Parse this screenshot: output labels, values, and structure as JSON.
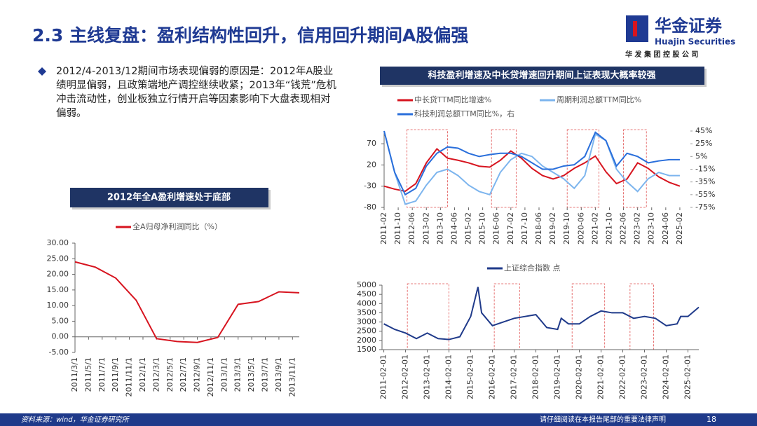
{
  "header": {
    "title": "2.3 主线复盘：盈利结构性回升，信用回升期间A股偏强",
    "logo_text": "华金证券",
    "logo_en": "Huajin Securities",
    "logo_sub": "华 发 集 团 控 股 公 司"
  },
  "bullet": "2012/4-2013/12期间市场表现偏弱的原因是：2012年A股业绩明显偏弱，且政策端地产调控继续收紧；2013年“钱荒”危机冲击流动性，创业板独立行情开启等因素影响下大盘表现相对偏弱。",
  "chart_data": [
    {
      "type": "line",
      "title": "2012年全A盈利增速处于底部",
      "x": [
        "2011/3/1",
        "2011/6/1",
        "2011/9/1",
        "2011/12/1",
        "2012/3/1",
        "2012/6/1",
        "2012/9/1",
        "2012/12/1",
        "2013/3/1",
        "2013/6/1",
        "2013/9/1",
        "2013/12/1"
      ],
      "series": [
        {
          "name": "全A归母净利润同比（%）",
          "color": "#d7141f",
          "values": [
            24,
            22.3,
            18.8,
            11.7,
            -0.6,
            -1.5,
            -1.8,
            -0.2,
            10.4,
            11.3,
            14.4,
            14.1
          ]
        }
      ],
      "xlim": [
        "2011/3/1",
        "2013/12/1"
      ],
      "xticks": [
        "2011/3/1",
        "2011/5/1",
        "2011/7/1",
        "2011/9/1",
        "2011/11/1",
        "2012/1/1",
        "2012/3/1",
        "2012/5/1",
        "2012/7/1",
        "2012/9/1",
        "2012/11/1",
        "2013/1/1",
        "2013/3/1",
        "2013/5/1",
        "2013/7/1",
        "2013/9/1",
        "2013/11/1"
      ],
      "ylim": [
        -5,
        30
      ],
      "yticks": [
        {
          "value": 30,
          "label": "30.00"
        },
        {
          "value": 25,
          "label": "25.00"
        },
        {
          "value": 20,
          "label": "20.00"
        },
        {
          "value": 15,
          "label": "15.00"
        },
        {
          "value": 10,
          "label": "10.00"
        },
        {
          "value": 5,
          "label": "5.00"
        },
        {
          "value": 0,
          "label": "0.00"
        },
        {
          "value": -5,
          "label": "-5.00"
        }
      ]
    },
    {
      "type": "line",
      "title": "科技盈利增速及中长贷增速回升期间上证表现大概率较强",
      "x": [
        "2011-02",
        "2011-08",
        "2012-02",
        "2012-08",
        "2013-02",
        "2013-08",
        "2014-02",
        "2014-08",
        "2015-02",
        "2015-08",
        "2016-02",
        "2016-08",
        "2017-02",
        "2017-08",
        "2018-02",
        "2018-08",
        "2019-02",
        "2019-08",
        "2020-02",
        "2020-08",
        "2021-02",
        "2021-08",
        "2022-02",
        "2022-08",
        "2023-02",
        "2023-08",
        "2024-02",
        "2024-08",
        "2025-02"
      ],
      "series": [
        {
          "name": "中长贷TTM同比增速%",
          "color": "#d7141f",
          "values": [
            -30,
            -37,
            -42,
            -24,
            25,
            58,
            36,
            31,
            25,
            17,
            15,
            31,
            53,
            36,
            12,
            -5,
            -13,
            -5,
            12,
            25,
            41,
            4,
            -24,
            -13,
            25,
            12,
            -8,
            -21,
            -30
          ]
        },
        {
          "name": "周期利润总额TTM同比%",
          "color": "#7db5ee",
          "axis": "y2",
          "values": [
            45,
            -20,
            -70,
            -65,
            -40,
            -20,
            -15,
            -25,
            -40,
            -50,
            -55,
            -20,
            0,
            10,
            5,
            -10,
            -20,
            -30,
            -45,
            -25,
            40,
            30,
            -15,
            -35,
            -50,
            -30,
            -20,
            -25,
            -25
          ]
        },
        {
          "name": "科技利润总额TTM同比%，右",
          "color": "#2a6fdb",
          "axis": "y2",
          "values": [
            45,
            -20,
            -55,
            -45,
            -10,
            10,
            20,
            18,
            10,
            5,
            8,
            10,
            10,
            5,
            -5,
            -15,
            -15,
            -10,
            -8,
            5,
            43,
            30,
            -10,
            10,
            5,
            -5,
            -2,
            0,
            0
          ]
        }
      ],
      "periods": [
        [
          "2012-03",
          "2014-02"
        ],
        [
          "2016-03",
          "2017-05"
        ],
        [
          "2019-10",
          "2021-04"
        ],
        [
          "2022-06",
          "2023-07"
        ]
      ],
      "xlim": [
        "2011-02",
        "2025-08"
      ],
      "xticks": [
        "2011-02",
        "2011-10",
        "2012-06",
        "2013-02",
        "2013-10",
        "2014-06",
        "2015-02",
        "2015-10",
        "2016-06",
        "2017-02",
        "2017-10",
        "2018-06",
        "2019-02",
        "2019-10",
        "2020-06",
        "2021-02",
        "2021-10",
        "2022-06",
        "2023-02",
        "2023-10",
        "2024-06",
        "2025-02"
      ],
      "ylim": [
        -80,
        100
      ],
      "yticks": [
        70,
        20,
        -30,
        -80
      ],
      "y2lim": [
        -75,
        45
      ],
      "y2ticks": [
        {
          "value": 45,
          "label": "45%"
        },
        {
          "value": 25,
          "label": "25%"
        },
        {
          "value": 5,
          "label": "5%"
        },
        {
          "value": -15,
          "label": "-15%"
        },
        {
          "value": -35,
          "label": "-35%"
        },
        {
          "value": -55,
          "label": "-55%"
        },
        {
          "value": -75,
          "label": "-75%"
        }
      ]
    },
    {
      "type": "line",
      "x": [
        "2011-02",
        "2011-08",
        "2012-02",
        "2012-08",
        "2013-02",
        "2013-08",
        "2014-02",
        "2014-08",
        "2015-02",
        "2015-06",
        "2015-08",
        "2016-02",
        "2016-08",
        "2017-02",
        "2017-08",
        "2018-02",
        "2018-08",
        "2019-02",
        "2019-04",
        "2019-08",
        "2020-02",
        "2020-08",
        "2021-02",
        "2021-08",
        "2022-02",
        "2022-08",
        "2023-02",
        "2023-08",
        "2024-02",
        "2024-08",
        "2024-10",
        "2025-02",
        "2025-08"
      ],
      "series": [
        {
          "name": "上证综合指数 点",
          "color": "#1f3a8a",
          "values": [
            2900,
            2600,
            2400,
            2100,
            2400,
            2100,
            2050,
            2200,
            3300,
            4900,
            3500,
            2800,
            3000,
            3200,
            3300,
            3400,
            2700,
            2600,
            3200,
            2900,
            2900,
            3300,
            3600,
            3500,
            3500,
            3200,
            3300,
            3200,
            2800,
            2900,
            3300,
            3300,
            3800
          ]
        }
      ],
      "periods": [
        [
          "2012-03",
          "2014-02"
        ],
        [
          "2016-03",
          "2017-05"
        ],
        [
          "2019-10",
          "2021-04"
        ],
        [
          "2022-06",
          "2023-07"
        ]
      ],
      "xlim": [
        "2011-01-01",
        "2025-08-01"
      ],
      "xticks": [
        "2011-02-01",
        "2012-02-01",
        "2013-02-01",
        "2014-02-01",
        "2015-02-01",
        "2016-02-01",
        "2017-02-01",
        "2018-02-01",
        "2019-02-01",
        "2020-02-01",
        "2021-02-01",
        "2022-02-01",
        "2023-02-01",
        "2024-02-01",
        "2025-02-01"
      ],
      "ylim": [
        1500,
        5000
      ],
      "yticks": [
        1500,
        2000,
        2500,
        3000,
        3500,
        4000,
        4500,
        5000
      ]
    }
  ],
  "footer": {
    "source": "资料来源：wind，华金证券研究所",
    "disclaimer": "请仔细阅读在本报告尾部的重要法律声明",
    "page": "18"
  }
}
